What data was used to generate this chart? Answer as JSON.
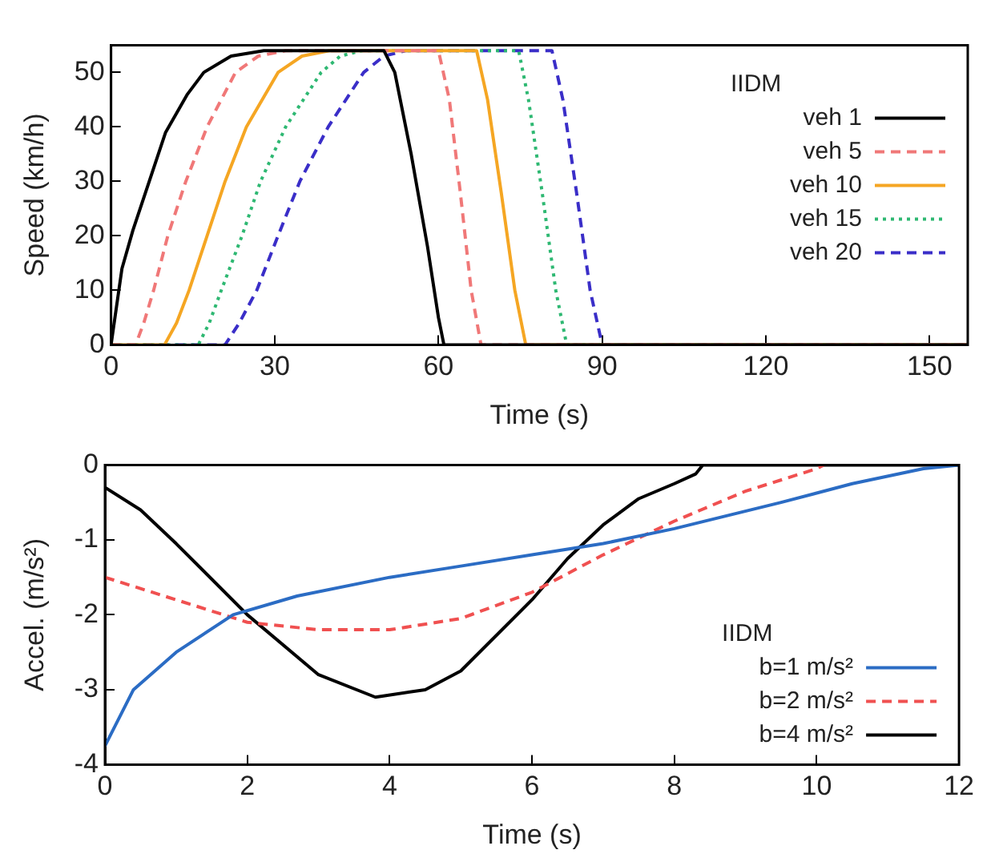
{
  "chart_data": [
    {
      "type": "line",
      "xlabel": "Time (s)",
      "ylabel": "Speed (km/h)",
      "legend_title": "IIDM",
      "legend": "top right",
      "grid": false,
      "marker": "none",
      "xlim": [
        0,
        157
      ],
      "xticks": [
        0,
        30,
        60,
        90,
        120,
        150
      ],
      "ylim": [
        0,
        55
      ],
      "yticks": [
        0,
        10,
        20,
        30,
        40,
        50
      ],
      "series": [
        {
          "name": "veh 1",
          "color": "#000000",
          "line_style": "solid",
          "x": [
            0,
            1,
            2,
            4,
            7,
            10,
            14,
            17,
            22,
            28,
            50,
            52,
            55,
            58,
            60,
            61,
            157
          ],
          "values": [
            0,
            7,
            14,
            21,
            30,
            39,
            46,
            50,
            53,
            54,
            54,
            50,
            35,
            18,
            5,
            0,
            0
          ]
        },
        {
          "name": "veh 5",
          "color": "#f07878",
          "line_style": "dashed",
          "x": [
            0,
            4.5,
            6,
            7.8,
            10.4,
            13.7,
            17.6,
            22.8,
            27,
            32,
            60,
            62,
            64,
            66,
            67.8,
            157
          ],
          "values": [
            0,
            0,
            4,
            10,
            20,
            30,
            40,
            50,
            53,
            54,
            54,
            45,
            28,
            10,
            0,
            0
          ]
        },
        {
          "name": "veh 10",
          "color": "#f5a623",
          "line_style": "solid",
          "x": [
            0,
            9.8,
            12,
            14.3,
            17.6,
            20.9,
            24.8,
            30.6,
            35,
            40,
            67,
            69,
            71.5,
            74,
            76,
            157
          ],
          "values": [
            0,
            0,
            4,
            10,
            20,
            30,
            40,
            50,
            53,
            54,
            54,
            45,
            28,
            10,
            0,
            0
          ]
        },
        {
          "name": "veh 15",
          "color": "#2eb872",
          "line_style": "dotted",
          "x": [
            0,
            16,
            18,
            20.2,
            24,
            27.4,
            32,
            38.5,
            42,
            46,
            74.7,
            76.5,
            79,
            81.5,
            83.5,
            157
          ],
          "values": [
            0,
            0,
            4,
            10,
            20,
            30,
            40,
            50,
            53,
            54,
            54,
            45,
            28,
            10,
            0,
            0
          ]
        },
        {
          "name": "veh 20",
          "color": "#3a2ec8",
          "line_style": "dashed",
          "x": [
            0,
            20.9,
            23.5,
            26.7,
            30.6,
            34.6,
            39.8,
            46.3,
            50,
            54,
            80.8,
            82.8,
            85.3,
            87.8,
            90,
            157
          ],
          "values": [
            0,
            0,
            4,
            10,
            20,
            30,
            40,
            50,
            53,
            54,
            54,
            45,
            28,
            10,
            0,
            0
          ]
        }
      ]
    },
    {
      "type": "line",
      "xlabel": "Time (s)",
      "ylabel": "Accel. (m/s²)",
      "legend_title": "IIDM",
      "legend": "bottom right",
      "grid": false,
      "marker": "none",
      "xlim": [
        0,
        12
      ],
      "xticks": [
        0,
        2,
        4,
        6,
        8,
        10,
        12
      ],
      "ylim": [
        -4,
        0
      ],
      "yticks": [
        -4,
        -3,
        -2,
        -1,
        0
      ],
      "series": [
        {
          "name": "b=1 m/s²",
          "color": "#2b6cc4",
          "line_style": "solid",
          "x": [
            0,
            0.4,
            1,
            1.8,
            2.7,
            4,
            5,
            6,
            7,
            8,
            9.5,
            10.5,
            11.5,
            12
          ],
          "values": [
            -3.75,
            -3,
            -2.5,
            -2,
            -1.75,
            -1.5,
            -1.35,
            -1.2,
            -1.05,
            -0.85,
            -0.5,
            -0.25,
            -0.05,
            0
          ]
        },
        {
          "name": "b=2 m/s²",
          "color": "#f05050",
          "line_style": "dashed",
          "x": [
            0,
            1,
            2,
            3,
            4,
            5,
            6,
            7,
            8,
            9,
            10,
            10.1
          ],
          "values": [
            -1.5,
            -1.8,
            -2.1,
            -2.2,
            -2.2,
            -2.05,
            -1.7,
            -1.2,
            -0.75,
            -0.35,
            -0.05,
            0
          ]
        },
        {
          "name": "b=4 m/s²",
          "color": "#000000",
          "line_style": "solid",
          "x": [
            0,
            0.5,
            1,
            2,
            3,
            3.8,
            4.5,
            5,
            6,
            6.5,
            7,
            7.5,
            8,
            8.3,
            8.4,
            12
          ],
          "values": [
            -0.3,
            -0.6,
            -1.05,
            -2,
            -2.8,
            -3.1,
            -3,
            -2.75,
            -1.8,
            -1.25,
            -0.8,
            -0.45,
            -0.25,
            -0.12,
            0,
            0
          ]
        }
      ]
    }
  ]
}
